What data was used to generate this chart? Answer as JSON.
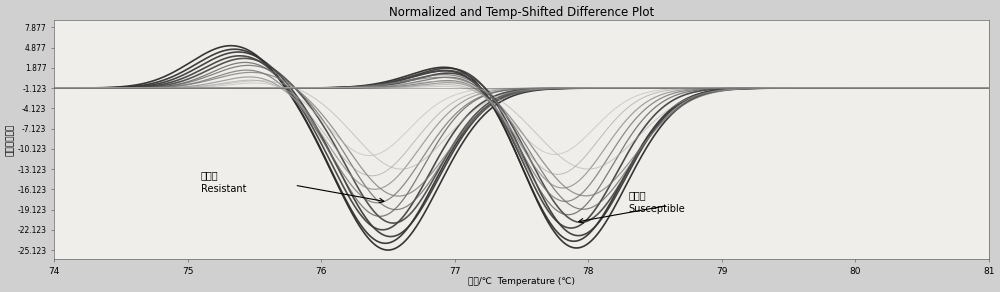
{
  "title": "Normalized and Temp-Shifted Difference Plot",
  "xlabel_cn": "温度/℃",
  "xlabel_en": "Temperature (℃)",
  "ylabel_cn": "相对荧光差値",
  "xlim": [
    74,
    81
  ],
  "ylim": [
    -26.5,
    9
  ],
  "xticks": [
    74,
    75,
    76,
    77,
    78,
    79,
    80,
    81
  ],
  "yticks": [
    7.877,
    4.877,
    1.877,
    -1.123,
    -4.123,
    -7.123,
    -10.123,
    -13.123,
    -16.123,
    -19.123,
    -22.123,
    -25.123
  ],
  "background_color": "#d0d0d0",
  "plot_bg_color": "#f0eeea"
}
